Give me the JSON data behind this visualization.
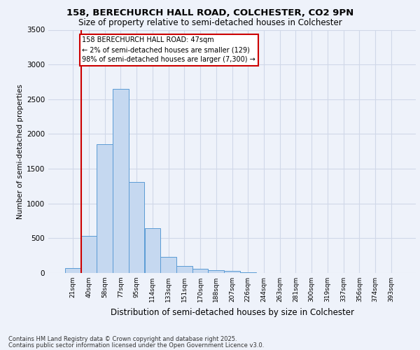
{
  "title1": "158, BERECHURCH HALL ROAD, COLCHESTER, CO2 9PN",
  "title2": "Size of property relative to semi-detached houses in Colchester",
  "xlabel": "Distribution of semi-detached houses by size in Colchester",
  "ylabel": "Number of semi-detached properties",
  "footnote1": "Contains HM Land Registry data © Crown copyright and database right 2025.",
  "footnote2": "Contains public sector information licensed under the Open Government Licence v3.0.",
  "categories": [
    "21sqm",
    "40sqm",
    "58sqm",
    "77sqm",
    "95sqm",
    "114sqm",
    "133sqm",
    "151sqm",
    "170sqm",
    "188sqm",
    "207sqm",
    "226sqm",
    "244sqm",
    "263sqm",
    "281sqm",
    "300sqm",
    "319sqm",
    "337sqm",
    "356sqm",
    "374sqm",
    "393sqm"
  ],
  "values": [
    70,
    530,
    1850,
    2650,
    1310,
    640,
    230,
    100,
    65,
    45,
    30,
    15,
    5,
    2,
    1,
    0,
    0,
    0,
    0,
    0,
    0
  ],
  "bar_color": "#c5d8f0",
  "bar_edge_color": "#5b9bd5",
  "grid_color": "#d0d8e8",
  "background_color": "#eef2fa",
  "red_line_color": "#cc0000",
  "annotation_text": "158 BERECHURCH HALL ROAD: 47sqm\n← 2% of semi-detached houses are smaller (129)\n98% of semi-detached houses are larger (7,300) →",
  "annotation_box_color": "#cc0000",
  "ylim": [
    0,
    3500
  ],
  "yticks": [
    0,
    500,
    1000,
    1500,
    2000,
    2500,
    3000,
    3500
  ]
}
